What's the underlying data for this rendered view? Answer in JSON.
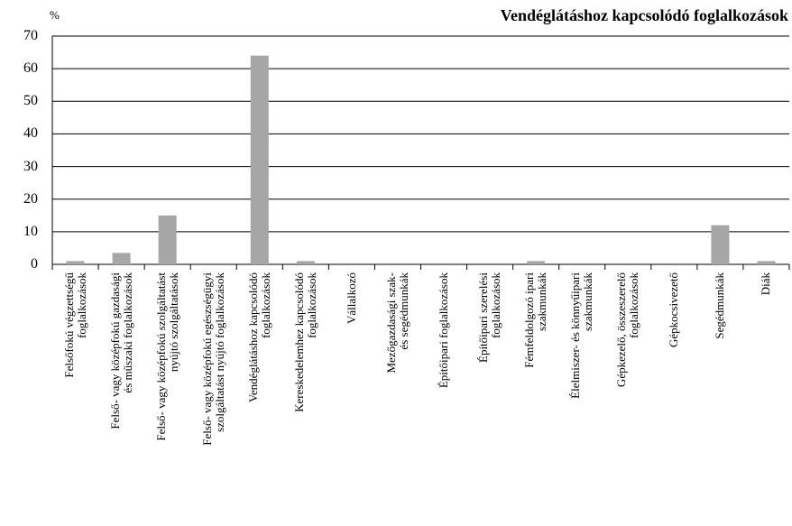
{
  "chart_data": {
    "type": "bar",
    "title": "Vendéglátáshoz kapcsolódó foglalkozások",
    "y_label": "%",
    "categories": [
      "Felsőfokú végzettségű\nfoglalkozások",
      "Felső- vagy középfokú gazdasági\nés műszaki foglalkozások",
      "Felső- vagy középfokú szolgáltatást\nnyújtó szolgáltatások",
      "Felső- vagy középfokú egészségügyi\nszolgáltatást nyújtó foglalkozások",
      "Vendéglátáshoz kapcsolódó\nfoglalkozások",
      "Kereskedelemhez kapcsolódó\nfoglalkozások",
      "Vállalkozó",
      "Mezőgazdasági szak-\nés segédmunkák",
      "Építőipari foglalkozások",
      "Építőipari szerelési\nfoglalkozások",
      "Fémfeldolgozó ipari\nszakmunkák",
      "Élelmiszer- és könnyűipari\nszakmunkák",
      "Gépkezelő, összeszerelő\nfoglalkozások",
      "Gépkocsivezető",
      "Segédmunkák",
      "Diák"
    ],
    "values": [
      1,
      3.5,
      15,
      0,
      64,
      1,
      0,
      0,
      0,
      0,
      1,
      0,
      0,
      0,
      12,
      1
    ],
    "color": "#a6a6a6",
    "ylim": [
      0,
      70
    ],
    "yticks": [
      0,
      10,
      20,
      30,
      40,
      50,
      60,
      70
    ],
    "grid": true
  }
}
